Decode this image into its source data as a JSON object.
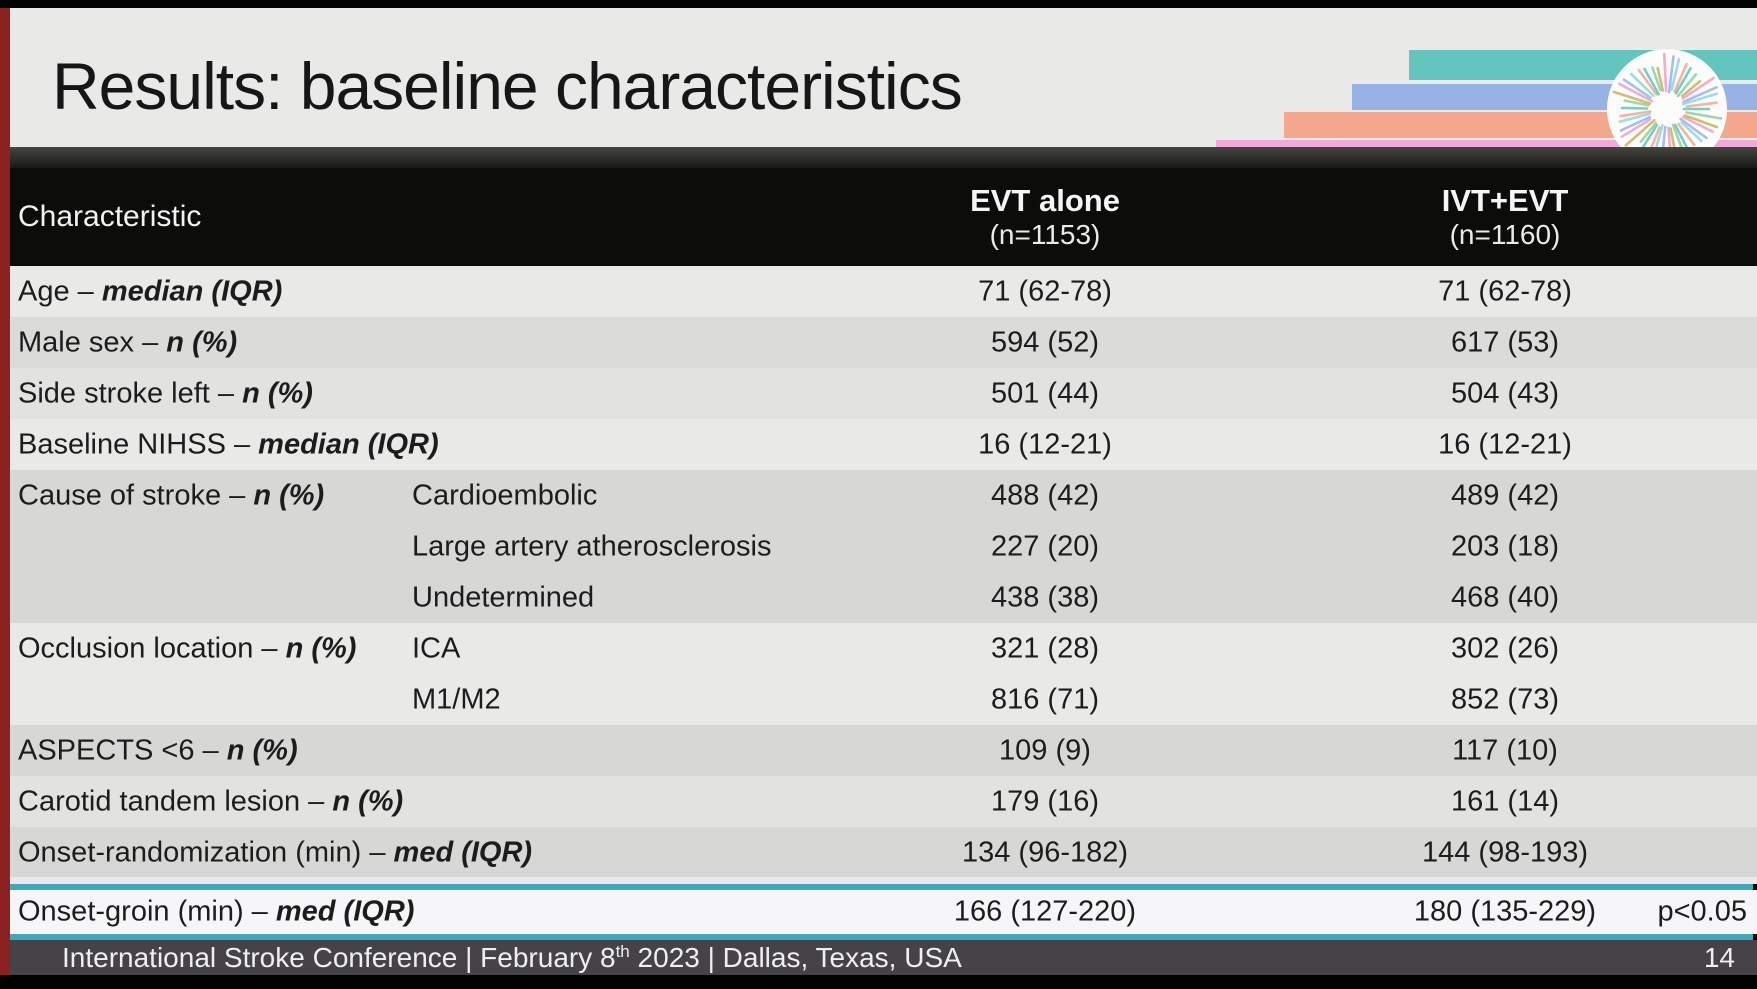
{
  "slide": {
    "title": "Results: baseline characteristics",
    "page_number": "14",
    "footer": {
      "pre": "International Stroke Conference | February 8",
      "sup": "th",
      "post": " 2023 | Dallas, Texas, USA"
    }
  },
  "colors": {
    "accent_teal": "#3fa9b8",
    "left_stripe_red": "#8b2121",
    "header_bg": "#0c0c0a",
    "footer_bg": "#454347",
    "decor_bar_teal": "#63c5be",
    "decor_bar_blue": "#97b2e5",
    "decor_bar_salmon": "#f3a88e",
    "decor_bar_pink": "#efaad7",
    "logo_spokes": [
      "#63c5be",
      "#8fd0a0",
      "#c9b35a",
      "#f0a0c8",
      "#9ab4e8",
      "#8ed6e0",
      "#f3a88e"
    ]
  },
  "table": {
    "header": {
      "characteristic": "Characteristic",
      "evt_title": "EVT alone",
      "evt_n": "(n=1153)",
      "ivt_title": "IVT+EVT",
      "ivt_n": "(n=1160)"
    },
    "p_value": "p<0.05",
    "rows": [
      {
        "label": "Age – ",
        "em": "median (IQR)",
        "sub": "",
        "evt": "71 (62-78)",
        "ivt": "71 (62-78)"
      },
      {
        "label": "Male sex – ",
        "em": "n (%)",
        "sub": "",
        "evt": "594 (52)",
        "ivt": "617 (53)"
      },
      {
        "label": "Side stroke left – ",
        "em": "n (%)",
        "sub": "",
        "evt": "501 (44)",
        "ivt": "504 (43)"
      },
      {
        "label": "Baseline NIHSS – ",
        "em": "median (IQR)",
        "sub": "",
        "evt": "16 (12-21)",
        "ivt": "16 (12-21)"
      },
      {
        "label": "Cause of stroke – ",
        "em": "n (%)",
        "sub": "Cardioembolic",
        "evt": "488 (42)",
        "ivt": "489 (42)"
      },
      {
        "label": "",
        "em": "",
        "sub": "Large artery atherosclerosis",
        "evt": "227 (20)",
        "ivt": "203 (18)"
      },
      {
        "label": "",
        "em": "",
        "sub": "Undetermined",
        "evt": "438 (38)",
        "ivt": "468 (40)"
      },
      {
        "label": "Occlusion location – ",
        "em": "n (%)",
        "sub": "ICA",
        "evt": "321 (28)",
        "ivt": "302 (26)"
      },
      {
        "label": "",
        "em": "",
        "sub": "M1/M2",
        "evt": "816 (71)",
        "ivt": "852 (73)"
      },
      {
        "label": "ASPECTS <6 – ",
        "em": "n (%)",
        "sub": "",
        "evt": "109 (9)",
        "ivt": "117 (10)"
      },
      {
        "label": "Carotid tandem lesion – ",
        "em": "n (%)",
        "sub": "",
        "evt": "179 (16)",
        "ivt": "161 (14)"
      },
      {
        "label": "Onset-randomization (min) – ",
        "em": "med (IQR)",
        "sub": "",
        "evt": "134 (96-182)",
        "ivt": "144 (98-193)"
      },
      {
        "label": "Onset-groin (min) – ",
        "em": "med (IQR)",
        "sub": "",
        "evt": "166 (127-220)",
        "ivt": "180 (135-229)"
      }
    ]
  }
}
